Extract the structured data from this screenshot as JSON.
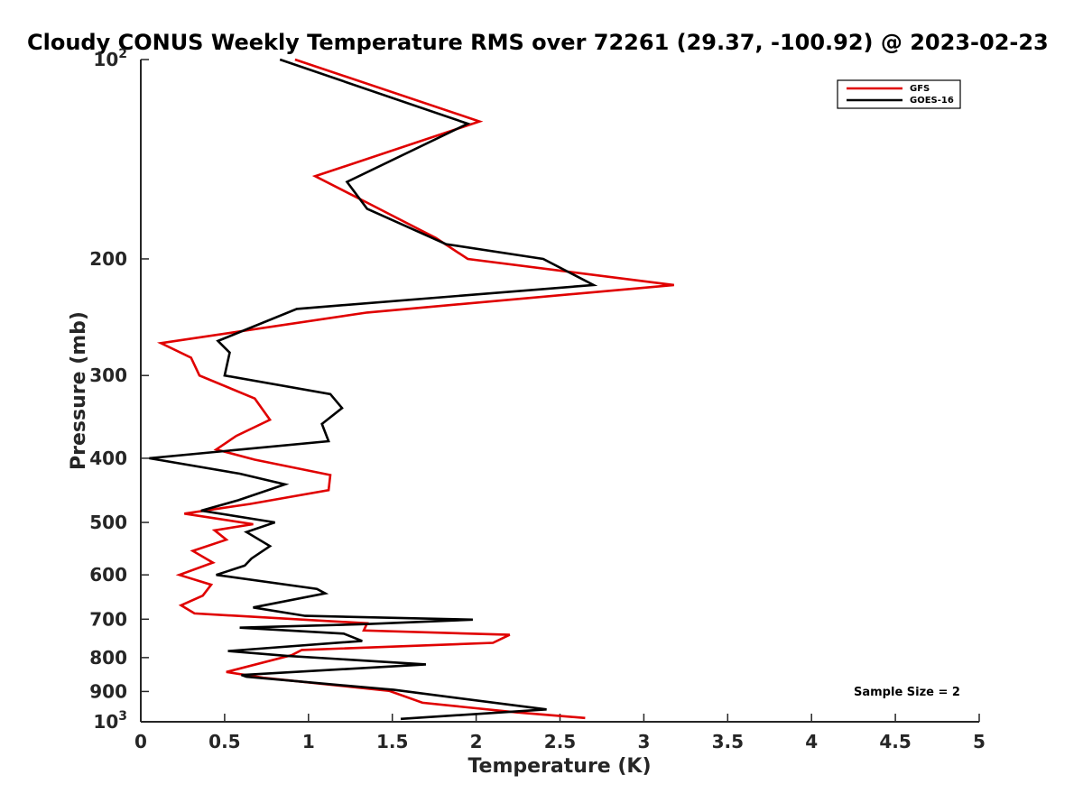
{
  "chart_data": {
    "type": "line",
    "title": "Cloudy CONUS Weekly Temperature RMS over 72261 (29.37, -100.92) @ 2023-02-23",
    "xlabel": "Temperature (K)",
    "ylabel": "Pressure (mb)",
    "xlim": [
      0,
      5
    ],
    "ylim": [
      100,
      1000
    ],
    "y_scale": "log",
    "y_reversed": true,
    "grid": false,
    "legend_position": "top-right",
    "x_ticks": [
      0,
      0.5,
      1,
      1.5,
      2,
      2.5,
      3,
      3.5,
      4,
      4.5,
      5
    ],
    "x_tick_labels": [
      "0",
      "0.5",
      "1",
      "1.5",
      "2",
      "2.5",
      "3",
      "3.5",
      "4",
      "4.5",
      "5"
    ],
    "y_ticks": [
      {
        "value": 100,
        "base": "10",
        "exp": "2"
      },
      {
        "value": 200,
        "label": "200"
      },
      {
        "value": 300,
        "label": "300"
      },
      {
        "value": 400,
        "label": "400"
      },
      {
        "value": 500,
        "label": "500"
      },
      {
        "value": 600,
        "label": "600"
      },
      {
        "value": 700,
        "label": "700"
      },
      {
        "value": 800,
        "label": "800"
      },
      {
        "value": 900,
        "label": "900"
      },
      {
        "value": 1000,
        "base": "10",
        "exp": "3"
      }
    ],
    "series": [
      {
        "name": "GFS",
        "color": "#e00000",
        "points": [
          [
            0.92,
            100
          ],
          [
            2.02,
            124
          ],
          [
            1.04,
            150
          ],
          [
            1.36,
            165
          ],
          [
            1.76,
            186
          ],
          [
            1.95,
            200
          ],
          [
            3.18,
            219
          ],
          [
            1.35,
            241
          ],
          [
            0.12,
            268
          ],
          [
            0.3,
            282
          ],
          [
            0.35,
            300
          ],
          [
            0.68,
            325
          ],
          [
            0.77,
            350
          ],
          [
            0.57,
            370
          ],
          [
            0.45,
            388
          ],
          [
            0.68,
            402
          ],
          [
            1.13,
            424
          ],
          [
            1.12,
            447
          ],
          [
            0.65,
            469
          ],
          [
            0.26,
            485
          ],
          [
            0.67,
            503
          ],
          [
            0.44,
            514
          ],
          [
            0.51,
            531
          ],
          [
            0.31,
            552
          ],
          [
            0.43,
            575
          ],
          [
            0.23,
            600
          ],
          [
            0.42,
            621
          ],
          [
            0.37,
            645
          ],
          [
            0.24,
            667
          ],
          [
            0.32,
            686
          ],
          [
            1.35,
            710
          ],
          [
            1.33,
            728
          ],
          [
            2.2,
            739
          ],
          [
            2.1,
            760
          ],
          [
            0.96,
            779
          ],
          [
            0.9,
            793
          ],
          [
            0.51,
            841
          ],
          [
            0.73,
            858
          ],
          [
            1.48,
            898
          ],
          [
            1.68,
            936
          ],
          [
            2.24,
            968
          ],
          [
            2.65,
            987
          ]
        ]
      },
      {
        "name": "GOES-16",
        "color": "#000000",
        "points": [
          [
            0.83,
            100
          ],
          [
            1.95,
            125
          ],
          [
            1.23,
            153
          ],
          [
            1.35,
            168
          ],
          [
            1.82,
            190
          ],
          [
            2.4,
            200
          ],
          [
            2.7,
            219
          ],
          [
            0.93,
            238
          ],
          [
            0.46,
            266
          ],
          [
            0.53,
            277
          ],
          [
            0.5,
            300
          ],
          [
            1.13,
            320
          ],
          [
            1.2,
            336
          ],
          [
            1.08,
            355
          ],
          [
            1.12,
            377
          ],
          [
            0.05,
            400
          ],
          [
            0.59,
            422
          ],
          [
            0.86,
            438
          ],
          [
            0.58,
            463
          ],
          [
            0.36,
            480
          ],
          [
            0.8,
            500
          ],
          [
            0.63,
            517
          ],
          [
            0.77,
            543
          ],
          [
            0.66,
            567
          ],
          [
            0.62,
            581
          ],
          [
            0.45,
            600
          ],
          [
            1.05,
            630
          ],
          [
            1.1,
            640
          ],
          [
            0.67,
            672
          ],
          [
            0.98,
            692
          ],
          [
            1.98,
            701
          ],
          [
            1.35,
            712
          ],
          [
            0.59,
            721
          ],
          [
            1.21,
            736
          ],
          [
            1.32,
            755
          ],
          [
            0.52,
            782
          ],
          [
            0.87,
            795
          ],
          [
            1.7,
            819
          ],
          [
            0.6,
            850
          ],
          [
            0.63,
            855
          ],
          [
            1.51,
            895
          ],
          [
            2.42,
            958
          ],
          [
            1.55,
            990
          ]
        ]
      }
    ],
    "annotations": [
      {
        "text": "Sample Size = 2"
      }
    ]
  }
}
